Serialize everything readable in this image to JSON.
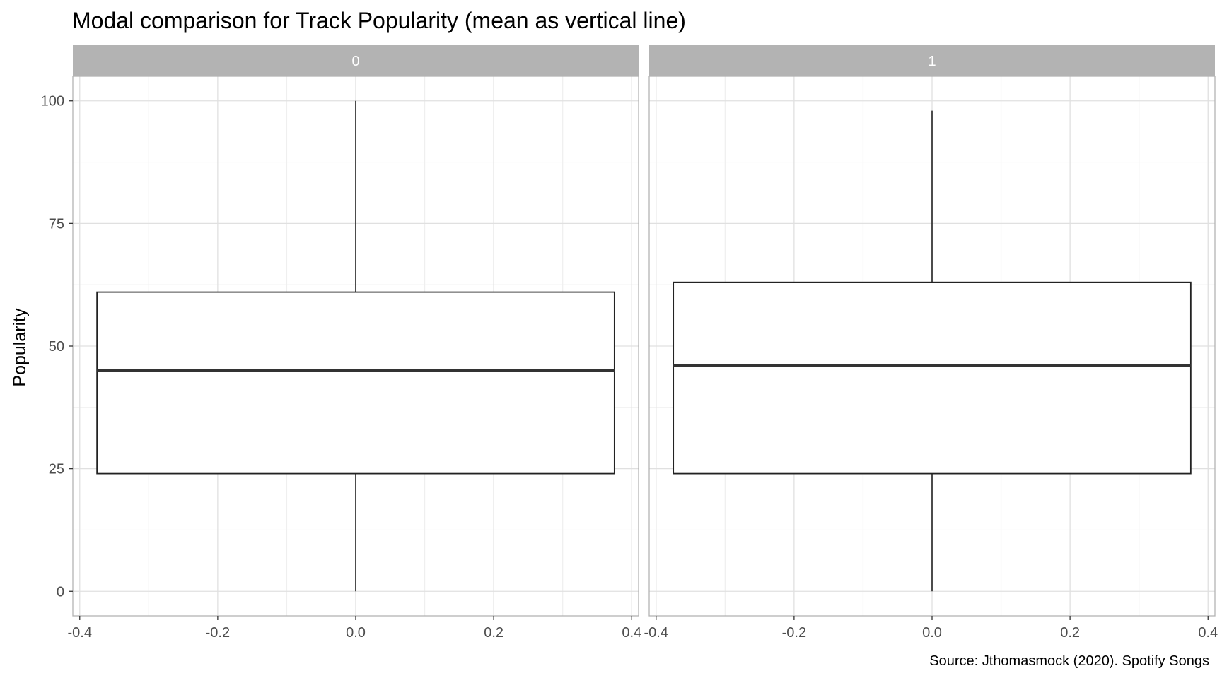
{
  "chart_data": {
    "type": "boxplot",
    "title": "Modal comparison for Track Popularity (mean as vertical line)",
    "ylabel": "Popularity",
    "xlabel": "",
    "caption": "Source: Jthomasmock (2020). Spotify Songs",
    "ylim": [
      -5,
      105
    ],
    "xlim": [
      -0.41,
      0.41
    ],
    "y_ticks": [
      0,
      25,
      50,
      75,
      100
    ],
    "x_ticks": [
      -0.4,
      -0.2,
      0.0,
      0.2,
      0.4
    ],
    "x_tick_labels": [
      "-0.4",
      "-0.2",
      "0.0",
      "0.2",
      "0.4"
    ],
    "grid": true,
    "facets": [
      {
        "label": "0",
        "box": {
          "min": 0,
          "q1": 24,
          "median": 45,
          "q3": 61,
          "max": 100,
          "xmin": -0.375,
          "xmax": 0.375,
          "x": 0
        }
      },
      {
        "label": "1",
        "box": {
          "min": 0,
          "q1": 24,
          "median": 46,
          "q3": 63,
          "max": 98,
          "xmin": -0.375,
          "xmax": 0.375,
          "x": 0
        }
      }
    ],
    "colors": {
      "strip_bg": "#b3b3b3",
      "strip_text": "#ffffff",
      "grid_major": "#e0e0e0",
      "grid_minor": "#efefef",
      "panel_border": "#b3b3b3",
      "box_stroke": "#222222",
      "median": "#333333"
    }
  }
}
